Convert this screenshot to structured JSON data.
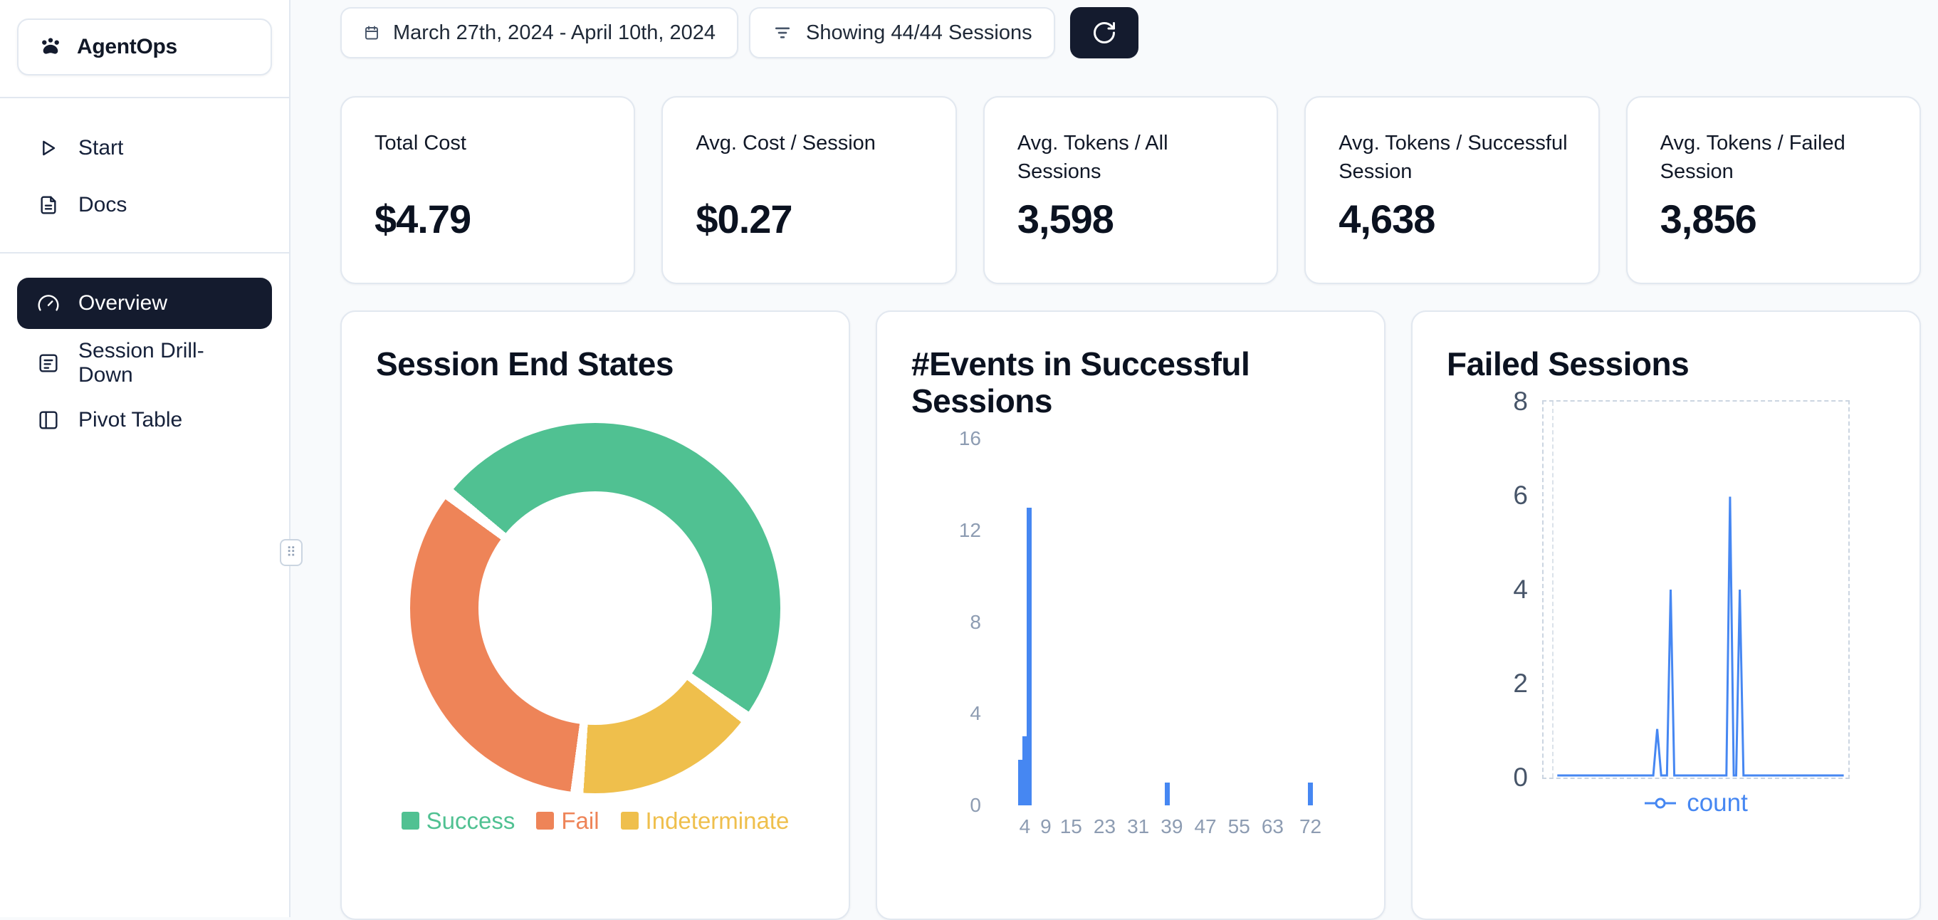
{
  "app": {
    "name": "AgentOps"
  },
  "sidebar": {
    "items": [
      {
        "label": "Start"
      },
      {
        "label": "Docs"
      },
      {
        "label": "Overview",
        "active": true
      },
      {
        "label": "Session Drill-Down"
      },
      {
        "label": "Pivot Table"
      }
    ]
  },
  "toolbar": {
    "date_range": "March 27th, 2024 - April 10th, 2024",
    "filter": "Showing 44/44 Sessions"
  },
  "stats": [
    {
      "label": "Total Cost",
      "value": "$4.79"
    },
    {
      "label": "Avg. Cost / Session",
      "value": "$0.27"
    },
    {
      "label": "Avg. Tokens / All Sessions",
      "value": "3,598"
    },
    {
      "label": "Avg. Tokens / Successful Session",
      "value": "4,638"
    },
    {
      "label": "Avg. Tokens / Failed Session",
      "value": "3,856"
    }
  ],
  "colors": {
    "accent_dark": "#141b2e",
    "blue": "#4687f2",
    "success": "#50c192",
    "fail": "#ee8458",
    "indeterminate": "#efbf4c"
  },
  "chart_data": [
    {
      "type": "pie",
      "title": "Session End States",
      "labels": [
        "Success",
        "Fail",
        "Indeterminate"
      ],
      "values": [
        50,
        34,
        16
      ],
      "colors": [
        "#50c192",
        "#ee8458",
        "#efbf4c"
      ],
      "donut": true,
      "direction": "counterclockwise",
      "start_angle_deg": -50,
      "legend_position": "bottom"
    },
    {
      "type": "bar",
      "title": "#Events in Successful Sessions",
      "x": [
        3,
        4,
        5,
        38,
        72
      ],
      "values": [
        2,
        3,
        13,
        1,
        1
      ],
      "x_ticks": [
        4,
        9,
        15,
        23,
        31,
        39,
        47,
        55,
        63,
        72
      ],
      "y_ticks": [
        0,
        4,
        8,
        12,
        16
      ],
      "xlim": [
        -2,
        87
      ],
      "ylim": [
        0,
        16
      ],
      "bar_color": "#4687f2",
      "grid": false
    },
    {
      "type": "line",
      "title": "Failed Sessions",
      "series": [
        {
          "name": "count",
          "x_frac": [
            0.045,
            0.36,
            0.373,
            0.386,
            0.405,
            0.417,
            0.429,
            0.6,
            0.612,
            0.624,
            0.632,
            0.644,
            0.656,
            0.985
          ],
          "y": [
            0,
            0,
            1,
            0,
            0,
            4,
            0,
            0,
            6,
            0,
            0,
            4,
            0,
            0
          ]
        }
      ],
      "y_ticks": [
        0,
        2,
        4,
        6,
        8
      ],
      "ylim": [
        0,
        8
      ],
      "line_color": "#4687f2",
      "plot_border": "dashed",
      "legend_position": "bottom"
    }
  ]
}
